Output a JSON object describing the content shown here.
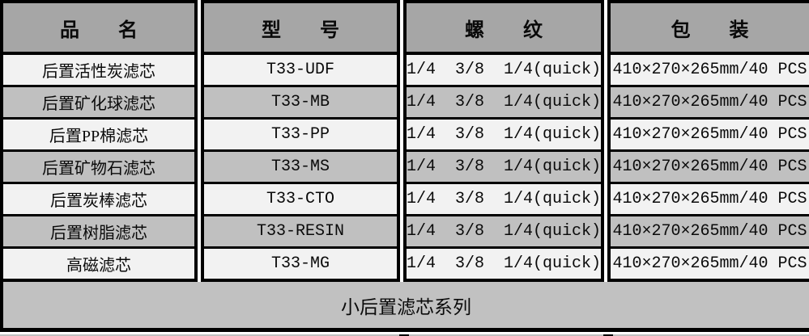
{
  "table": {
    "columns": [
      {
        "label": "品　　名"
      },
      {
        "label": "型　　号"
      },
      {
        "label": "螺　　纹"
      },
      {
        "label": "包　　装"
      }
    ],
    "rows": [
      {
        "name": "后置活性炭滤芯",
        "model": "T33-UDF",
        "thread": "1/4  3/8  1/4(quick)",
        "package": "410×270×265mm/40 PCS"
      },
      {
        "name": "后置矿化球滤芯",
        "model": "T33-MB",
        "thread": "1/4  3/8  1/4(quick)",
        "package": "410×270×265mm/40 PCS"
      },
      {
        "name": "后置PP棉滤芯",
        "model": "T33-PP",
        "thread": "1/4  3/8  1/4(quick)",
        "package": "410×270×265mm/40 PCS"
      },
      {
        "name": "后置矿物石滤芯",
        "model": "T33-MS",
        "thread": "1/4  3/8  1/4(quick)",
        "package": "410×270×265mm/40 PCS"
      },
      {
        "name": "后置炭棒滤芯",
        "model": "T33-CTO",
        "thread": "1/4  3/8  1/4(quick)",
        "package": "410×270×265mm/40 PCS"
      },
      {
        "name": "后置树脂滤芯",
        "model": "T33-RESIN",
        "thread": "1/4  3/8  1/4(quick)",
        "package": "410×270×265mm/40 PCS"
      },
      {
        "name": "高磁滤芯",
        "model": "T33-MG",
        "thread": "1/4  3/8  1/4(quick)",
        "package": "410×270×265mm/40 PCS"
      }
    ],
    "footer": "小后置滤芯系列"
  },
  "colors": {
    "header_bg": "#a6a6a6",
    "row_light_bg": "#f2f2f2",
    "row_gray_bg": "#c0c0c0",
    "footer_bg": "#c1c1c1",
    "border": "#000000",
    "text": "#0a0a0a"
  }
}
